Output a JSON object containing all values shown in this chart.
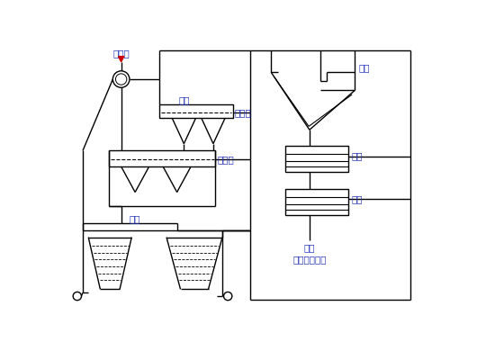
{
  "bg_color": "#ffffff",
  "line_color": "#000000",
  "text_color": "#2233bb",
  "red_color": "#cc0000",
  "labels": {
    "raw_coal": "原料煮",
    "spray_water": "喷水",
    "heavy_product": "重产物",
    "light_product": "轻产物",
    "diversion": "分流",
    "overflow": "溢流",
    "concentrate1": "精矿",
    "concentrate2": "精矿",
    "tailings": "尾矿",
    "system": "去煮泥水系统"
  }
}
